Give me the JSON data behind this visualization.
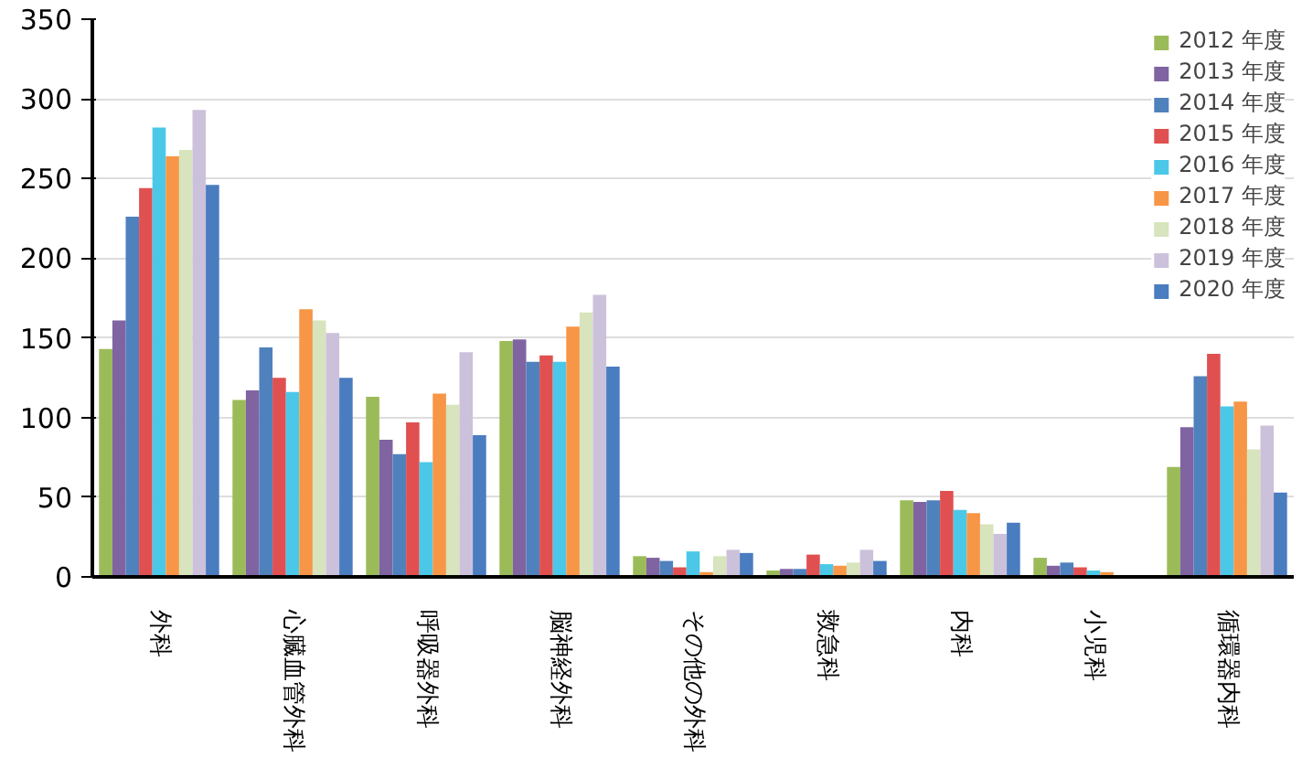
{
  "chart_data": {
    "type": "bar",
    "categories": [
      "外科",
      "心臓血管外科",
      "呼吸器外科",
      "脳神経外科",
      "その他の外科",
      "救急科",
      "内科",
      "小児科",
      "循環器内科"
    ],
    "series": [
      {
        "name": "2012 年度",
        "color": "#9bbb59",
        "values": [
          143,
          111,
          113,
          148,
          13,
          4,
          48,
          12,
          69
        ]
      },
      {
        "name": "2013 年度",
        "color": "#8064a2",
        "values": [
          161,
          117,
          86,
          149,
          12,
          5,
          47,
          7,
          94
        ]
      },
      {
        "name": "2014 年度",
        "color": "#4f81bd",
        "values": [
          226,
          144,
          77,
          135,
          10,
          5,
          48,
          9,
          126
        ]
      },
      {
        "name": "2015 年度",
        "color": "#e05050",
        "values": [
          244,
          125,
          97,
          139,
          6,
          14,
          54,
          6,
          140
        ]
      },
      {
        "name": "2016 年度",
        "color": "#4bc8e8",
        "values": [
          282,
          116,
          72,
          135,
          16,
          8,
          42,
          4,
          107
        ]
      },
      {
        "name": "2017 年度",
        "color": "#f79646",
        "values": [
          264,
          168,
          115,
          157,
          3,
          7,
          40,
          3,
          110
        ]
      },
      {
        "name": "2018 年度",
        "color": "#d7e4bd",
        "values": [
          268,
          161,
          108,
          166,
          13,
          9,
          33,
          null,
          80
        ]
      },
      {
        "name": "2019 年度",
        "color": "#ccc1da",
        "values": [
          293,
          153,
          141,
          177,
          17,
          17,
          27,
          null,
          95
        ]
      },
      {
        "name": "2020 年度",
        "color": "#4a7cc0",
        "values": [
          246,
          125,
          89,
          132,
          15,
          10,
          34,
          null,
          53
        ]
      }
    ],
    "ylim": [
      0,
      350
    ],
    "yticks": [
      0,
      50,
      100,
      150,
      200,
      250,
      300,
      350
    ],
    "grid": "y",
    "legend": "top right"
  }
}
